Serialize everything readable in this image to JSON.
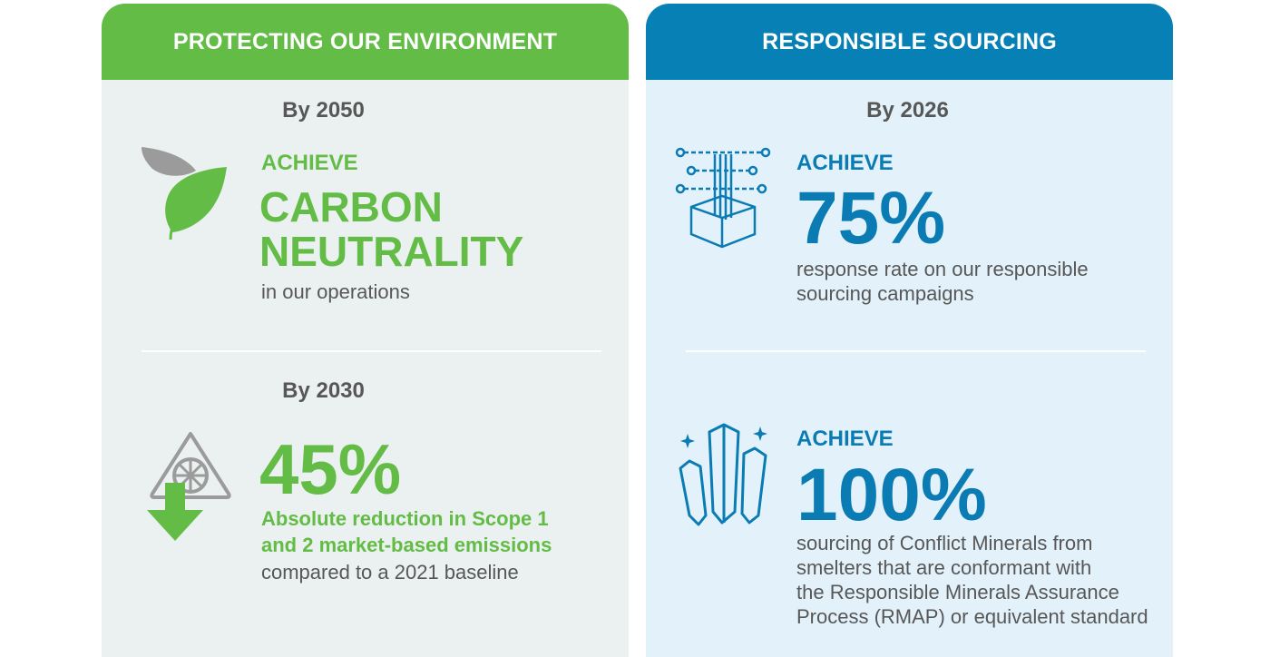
{
  "left": {
    "header": "PROTECTING OUR ENVIRONMENT",
    "block1": {
      "by": "By 2050",
      "achieve": "ACHIEVE",
      "headline_line1": "CARBON",
      "headline_line2": "NEUTRALITY",
      "description": "in our operations"
    },
    "block2": {
      "by": "By 2030",
      "percent": "45%",
      "bold_line1": "Absolute reduction in Scope 1",
      "bold_line2": "and 2 market-based emissions",
      "description": "compared to a 2021 baseline"
    }
  },
  "right": {
    "header": "RESPONSIBLE SOURCING",
    "block1": {
      "by": "By 2026",
      "achieve": "ACHIEVE",
      "percent": "75%",
      "line1": "response rate on our responsible",
      "line2": "sourcing campaigns"
    },
    "block2": {
      "achieve": "ACHIEVE",
      "percent": "100%",
      "line1": "sourcing of Conflict Minerals from",
      "line2": "smelters that are conformant with",
      "line3": "the Responsible Minerals Assurance",
      "line4": "Process (RMAP) or equivalent standard"
    }
  },
  "colors": {
    "green": "#63bc46",
    "blue": "#0680b5",
    "left_bg": "#ebf0f0",
    "right_bg": "#e3f2fa",
    "text_gray": "#575757"
  },
  "icons": {
    "left_block1": "leaf-icon",
    "left_block2": "fan-down-arrow-icon",
    "right_block1": "network-box-icon",
    "right_block2": "crystals-icon"
  }
}
